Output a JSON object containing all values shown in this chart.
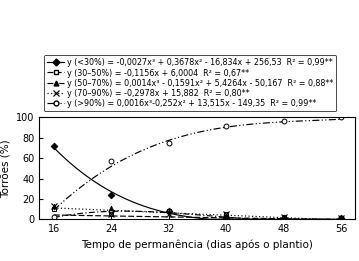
{
  "x_data": [
    16,
    24,
    32,
    40,
    48,
    56
  ],
  "y_lt30": [
    72,
    24,
    8,
    1,
    1,
    1
  ],
  "y_30_50": [
    10,
    5,
    8,
    5,
    2,
    1
  ],
  "y_50_70": [
    13,
    11,
    8,
    2,
    1,
    1
  ],
  "y_70_90": [
    13,
    5,
    5,
    5,
    2,
    1
  ],
  "y_gt90": [
    2,
    57,
    75,
    92,
    97,
    100
  ],
  "coef_lt30": [
    -0.0027,
    0.3678,
    -16.834,
    256.53
  ],
  "coef_30_50": [
    -0.1156,
    6.0004
  ],
  "coef_50_70": [
    0.0014,
    -0.1591,
    5.4264,
    -50.167
  ],
  "coef_70_90": [
    -0.2978,
    15.882
  ],
  "coef_gt90": [
    0.0016,
    -0.252,
    13.515,
    -149.35
  ],
  "xlabel": "Tempo de permanência (dias após o plantio)",
  "ylabel": "Torrões (%)",
  "xlim": [
    14,
    58
  ],
  "ylim": [
    0,
    100
  ],
  "xticks": [
    16,
    24,
    32,
    40,
    48,
    56
  ],
  "yticks": [
    0,
    20,
    40,
    60,
    80,
    100
  ],
  "legend_labels": [
    "y (<30%) = -0,0027x³ + 0,3678x² - 16,834x + 256,53  R² = 0,99**",
    "y (30–50%) = -0,1156x + 6,0004  R² = 0,67**",
    "y (50–70%) = 0,0014x³ - 0,1591x² + 5,4264x - 50,167  R² = 0,88**",
    "y (70–90%) = -0,2978x + 15,882  R² = 0,80**",
    "y (>90%) = 0,0016x³-0,252x² + 13,515x - 149,35  R² = 0,99**"
  ],
  "color": "black",
  "legend_fontsize": 5.8,
  "axis_fontsize": 7.5,
  "tick_fontsize": 7
}
